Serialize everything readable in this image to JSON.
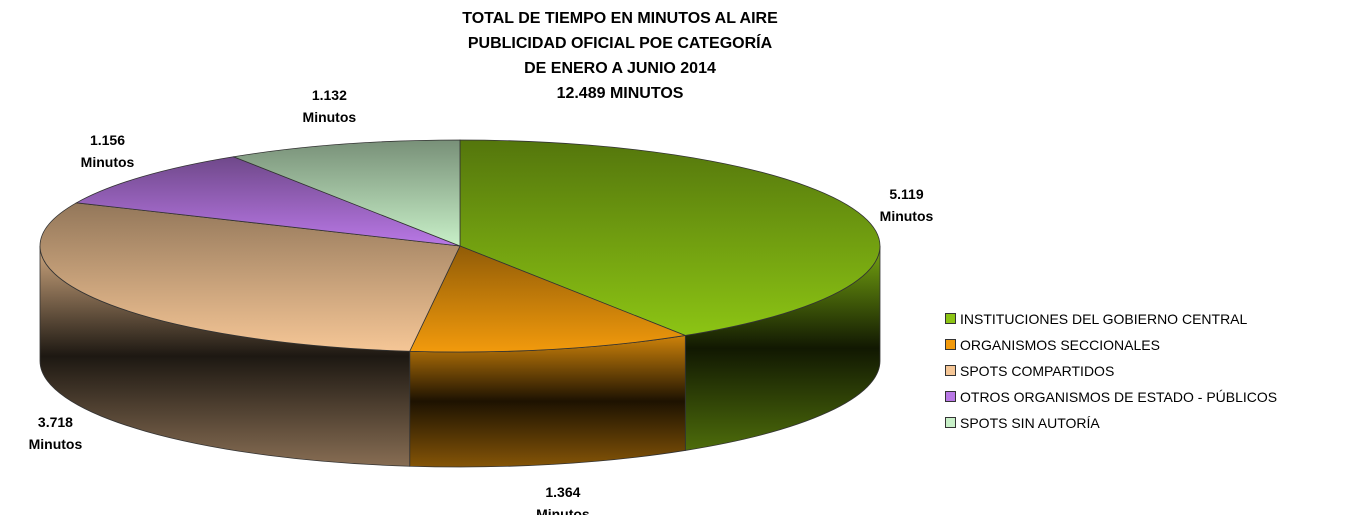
{
  "chart_data": {
    "type": "pie3d",
    "title": [
      "TOTAL DE TIEMPO EN MINUTOS AL AIRE",
      "PUBLICIDAD OFICIAL POE CATEGORÍA",
      "DE ENERO A JUNIO 2014",
      "12.489 MINUTOS"
    ],
    "categories": [
      "INSTITUCIONES DEL GOBIERNO CENTRAL",
      "ORGANISMOS SECCIONALES",
      "SPOTS COMPARTIDOS",
      "OTROS ORGANISMOS DE ESTADO - PÚBLICOS",
      "SPOTS SIN AUTORÍA"
    ],
    "values": [
      5119,
      1364,
      3718,
      1156,
      1132
    ],
    "value_labels": [
      "5.119 Minutos",
      "1.364 Minutos",
      "3.718 Minutos",
      "1.156 Minutos",
      "1.132 Minutos"
    ],
    "colors": [
      "#8cc414",
      "#f29a0c",
      "#f5c696",
      "#b978e6",
      "#c8f0c8"
    ],
    "legend": "right"
  }
}
